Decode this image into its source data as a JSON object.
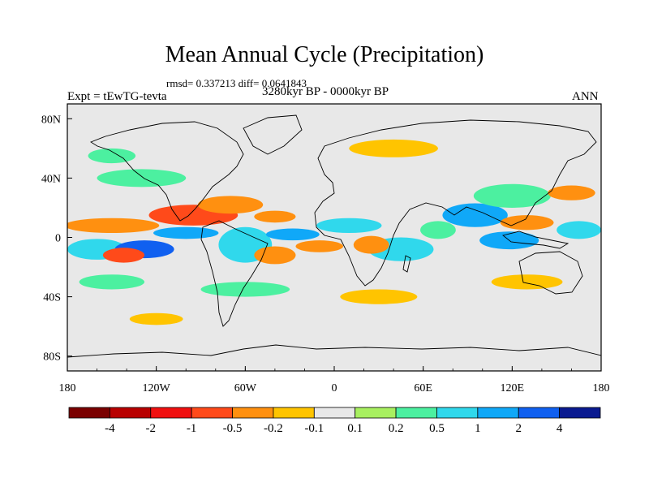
{
  "chart_data": {
    "type": "heatmap",
    "title": "Mean Annual Cycle (Precipitation)",
    "stats_label": "rmsd= 0.337213 diff= 0.0641843",
    "experiment_label": "Expt = tEwTG-tevta",
    "period_label": "3280kyr BP - 0000kyr BP",
    "season_label": "ANN",
    "x_axis": {
      "range": [
        -180,
        180
      ],
      "ticks": [
        {
          "value": -180,
          "label": "180"
        },
        {
          "value": -120,
          "label": "120W"
        },
        {
          "value": -60,
          "label": "60W"
        },
        {
          "value": 0,
          "label": "0"
        },
        {
          "value": 60,
          "label": "60E"
        },
        {
          "value": 120,
          "label": "120E"
        },
        {
          "value": 180,
          "label": "180"
        }
      ]
    },
    "y_axis": {
      "range": [
        -90,
        90
      ],
      "ticks": [
        {
          "value": 80,
          "label": "80N"
        },
        {
          "value": 40,
          "label": "40N"
        },
        {
          "value": 0,
          "label": "0"
        },
        {
          "value": -40,
          "label": "40S"
        },
        {
          "value": -80,
          "label": "80S"
        }
      ]
    },
    "colorbar": {
      "colors": [
        "#7a0000",
        "#b80000",
        "#f01010",
        "#ff4a1a",
        "#ff9010",
        "#ffc400",
        "#e8e8e8",
        "#a8f060",
        "#4cf0a0",
        "#30d8ec",
        "#10a8f8",
        "#1060f0",
        "#0a1a90"
      ],
      "labels": [
        "-4",
        "-2",
        "-1",
        "-0.5",
        "-0.2",
        "-0.1",
        "0.1",
        "0.2",
        "0.5",
        "1",
        "2",
        "4"
      ]
    },
    "anomaly_regions": [
      {
        "lon": -150,
        "lat": 8,
        "rlon": 32,
        "rlat": 5,
        "level": -0.5
      },
      {
        "lon": -95,
        "lat": 15,
        "rlon": 30,
        "rlat": 7,
        "level": -1
      },
      {
        "lon": -70,
        "lat": 22,
        "rlon": 22,
        "rlat": 6,
        "level": -0.5
      },
      {
        "lon": -40,
        "lat": 14,
        "rlon": 14,
        "rlat": 4,
        "level": -0.5
      },
      {
        "lon": -160,
        "lat": -8,
        "rlon": 20,
        "rlat": 7,
        "level": 0.5
      },
      {
        "lon": -128,
        "lat": -8,
        "rlon": 20,
        "rlat": 6,
        "level": 2
      },
      {
        "lon": -142,
        "lat": -12,
        "rlon": 14,
        "rlat": 5,
        "level": -1
      },
      {
        "lon": -100,
        "lat": 3,
        "rlon": 22,
        "rlat": 4,
        "level": 1
      },
      {
        "lon": -60,
        "lat": -5,
        "rlon": 18,
        "rlat": 12,
        "level": 0.5
      },
      {
        "lon": -28,
        "lat": 2,
        "rlon": 18,
        "rlat": 4,
        "level": 1
      },
      {
        "lon": -10,
        "lat": -6,
        "rlon": 16,
        "rlat": 4,
        "level": -0.5
      },
      {
        "lon": -40,
        "lat": -12,
        "rlon": 14,
        "rlat": 6,
        "level": -0.5
      },
      {
        "lon": 10,
        "lat": 8,
        "rlon": 22,
        "rlat": 5,
        "level": 0.5
      },
      {
        "lon": 45,
        "lat": -8,
        "rlon": 22,
        "rlat": 8,
        "level": 0.5
      },
      {
        "lon": 25,
        "lat": -5,
        "rlon": 12,
        "rlat": 6,
        "level": -0.5
      },
      {
        "lon": 95,
        "lat": 15,
        "rlon": 22,
        "rlat": 8,
        "level": 1
      },
      {
        "lon": 130,
        "lat": 10,
        "rlon": 18,
        "rlat": 5,
        "level": -0.5
      },
      {
        "lon": 118,
        "lat": -2,
        "rlon": 20,
        "rlat": 6,
        "level": 1
      },
      {
        "lon": 165,
        "lat": 5,
        "rlon": 15,
        "rlat": 6,
        "level": 0.5
      },
      {
        "lon": 120,
        "lat": 28,
        "rlon": 26,
        "rlat": 8,
        "level": 0.2
      },
      {
        "lon": -130,
        "lat": 40,
        "rlon": 30,
        "rlat": 6,
        "level": 0.2
      },
      {
        "lon": 40,
        "lat": 60,
        "rlon": 30,
        "rlat": 6,
        "level": -0.2
      },
      {
        "lon": -150,
        "lat": 55,
        "rlon": 16,
        "rlat": 5,
        "level": 0.2
      },
      {
        "lon": -60,
        "lat": -35,
        "rlon": 30,
        "rlat": 5,
        "level": 0.2
      },
      {
        "lon": 30,
        "lat": -40,
        "rlon": 26,
        "rlat": 5,
        "level": -0.2
      },
      {
        "lon": 130,
        "lat": -30,
        "rlon": 24,
        "rlat": 5,
        "level": -0.2
      },
      {
        "lon": -150,
        "lat": -30,
        "rlon": 22,
        "rlat": 5,
        "level": 0.2
      },
      {
        "lon": -120,
        "lat": -55,
        "rlon": 18,
        "rlat": 4,
        "level": -0.2
      },
      {
        "lon": 160,
        "lat": 30,
        "rlon": 16,
        "rlat": 5,
        "level": -0.5
      },
      {
        "lon": 70,
        "lat": 5,
        "rlon": 12,
        "rlat": 6,
        "level": 0.2
      }
    ]
  }
}
